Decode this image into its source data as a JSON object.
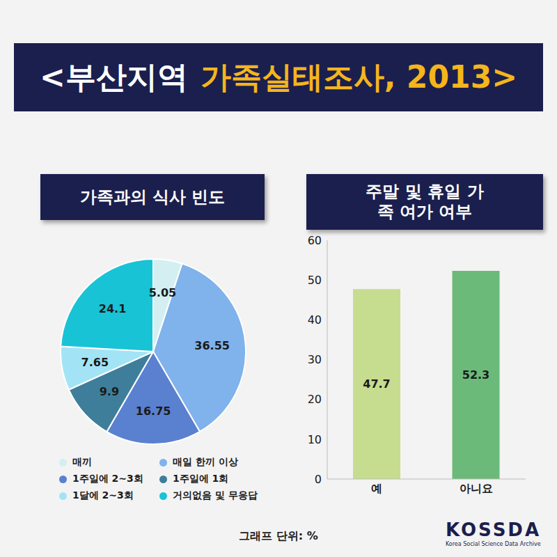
{
  "title": {
    "lead": "<부산지역",
    "highlight": "가족실태조사, 2013>"
  },
  "unit_note": "그래프 단위: %",
  "source": {
    "name": "KOSSDA",
    "full_name": "Korea Social Science Data Archive"
  },
  "chart_data": [
    {
      "type": "pie",
      "title": "가족과의 식사 빈도",
      "categories": [
        "매끼",
        "매일 한끼 이상",
        "1주일에 2~3회",
        "1주일에 1회",
        "1달에 2~3회",
        "거의없음 및 무응답"
      ],
      "values": [
        5.05,
        36.55,
        16.75,
        9.9,
        7.65,
        24.1
      ],
      "colors": [
        "#d3eff1",
        "#80b2ec",
        "#5a80d0",
        "#3e7e9a",
        "#a2e4f6",
        "#18c3d6"
      ],
      "data_labels": true,
      "legend": "bottom"
    },
    {
      "type": "bar",
      "title": "주말 및 휴일 가족 여가 여부",
      "categories": [
        "예",
        "아니요"
      ],
      "values": [
        47.7,
        52.3
      ],
      "colors": [
        "#c6dc8f",
        "#6cba79"
      ],
      "ylim": [
        0,
        60
      ],
      "yticks": [
        0,
        10,
        20,
        30,
        40,
        50,
        60
      ],
      "grid": false,
      "data_labels": true
    }
  ]
}
